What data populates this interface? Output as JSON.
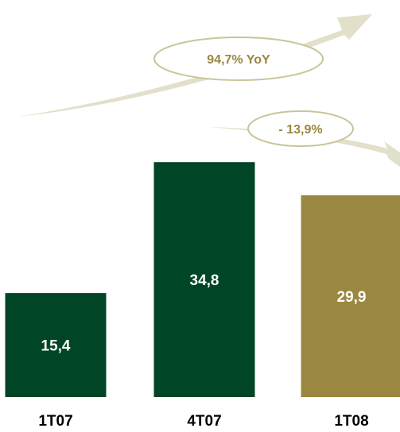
{
  "colors": {
    "dark_green": "#004526",
    "olive": "#9A8840",
    "arrow": "#E2E0CA",
    "callout_border": "#C9C49A",
    "callout_text": "#9A8840"
  },
  "chart_data": {
    "type": "bar",
    "categories": [
      "1T07",
      "4T07",
      "1T08"
    ],
    "values": [
      15.4,
      34.8,
      29.9
    ],
    "value_labels": [
      "15,4",
      "34,8",
      "29,9"
    ],
    "bar_colors": [
      "#004526",
      "#004526",
      "#9A8840"
    ],
    "ylim": [
      0,
      40
    ],
    "grid": false,
    "title": "",
    "xlabel": "",
    "ylabel": "",
    "annotations": [
      {
        "text": "94,7% YoY",
        "from": "1T07",
        "to": "1T08"
      },
      {
        "text": "- 13,9%",
        "from": "4T07",
        "to": "1T08"
      }
    ]
  }
}
